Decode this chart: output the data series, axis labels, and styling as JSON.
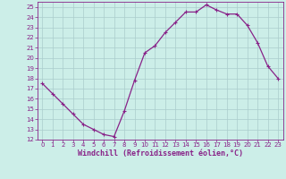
{
  "x": [
    0,
    1,
    2,
    3,
    4,
    5,
    6,
    7,
    8,
    9,
    10,
    11,
    12,
    13,
    14,
    15,
    16,
    17,
    18,
    19,
    20,
    21,
    22,
    23
  ],
  "y": [
    17.5,
    16.5,
    15.5,
    14.5,
    13.5,
    13.0,
    12.5,
    12.3,
    14.8,
    17.8,
    20.5,
    21.2,
    22.5,
    23.5,
    24.5,
    24.5,
    25.2,
    24.7,
    24.3,
    24.3,
    23.2,
    21.5,
    19.2,
    18.0
  ],
  "line_color": "#882288",
  "marker": "+",
  "markersize": 3.5,
  "linewidth": 0.9,
  "xlabel": "Windchill (Refroidissement éolien,°C)",
  "xlabel_fontsize": 6,
  "xlim": [
    -0.5,
    23.5
  ],
  "ylim": [
    12,
    25.5
  ],
  "yticks": [
    12,
    13,
    14,
    15,
    16,
    17,
    18,
    19,
    20,
    21,
    22,
    23,
    24,
    25
  ],
  "xticks": [
    0,
    1,
    2,
    3,
    4,
    5,
    6,
    7,
    8,
    9,
    10,
    11,
    12,
    13,
    14,
    15,
    16,
    17,
    18,
    19,
    20,
    21,
    22,
    23
  ],
  "bg_color": "#cceee8",
  "grid_color": "#aacccc",
  "tick_color": "#882288",
  "tick_fontsize": 5,
  "spine_color": "#882288"
}
